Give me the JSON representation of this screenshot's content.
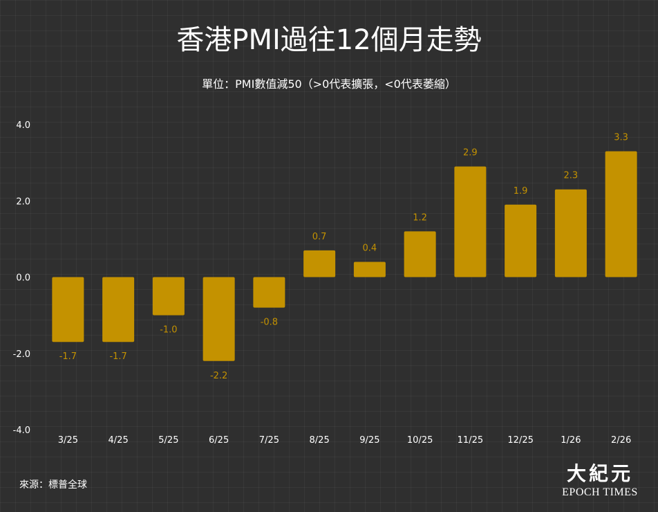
{
  "chart_data": {
    "type": "bar",
    "title": "香港PMI過往12個月走勢",
    "subtitle": "單位：PMI數值減50（>0代表擴張，<0代表萎縮）",
    "categories": [
      "3/25",
      "4/25",
      "5/25",
      "6/25",
      "7/25",
      "8/25",
      "9/25",
      "10/25",
      "11/25",
      "12/25",
      "1/26",
      "2/26"
    ],
    "values": [
      -1.7,
      -1.7,
      -1.0,
      -2.2,
      -0.8,
      0.7,
      0.4,
      1.2,
      2.9,
      1.9,
      2.3,
      3.3
    ],
    "value_labels": [
      "-1.7",
      "-1.7",
      "-1.0",
      "-2.2",
      "-0.8",
      "0.7",
      "0.4",
      "1.2",
      "2.9",
      "1.9",
      "2.3",
      "3.3"
    ],
    "yticks": [
      "4.0",
      "2.0",
      "0.0",
      "-2.0",
      "-4.0"
    ],
    "ytick_values": [
      4,
      2,
      0,
      -2,
      -4
    ],
    "ylim": [
      -4,
      4
    ],
    "xlabel": "",
    "ylabel": "",
    "grid": true,
    "legend": "none",
    "colors": {
      "bar": "#c49200",
      "value_label": "#c49200",
      "background": "#2f2f2f",
      "text": "#ffffff"
    }
  },
  "source": "來源：標普全球",
  "logo": {
    "chinese": "大紀元",
    "english": "EPOCH TIMES"
  }
}
